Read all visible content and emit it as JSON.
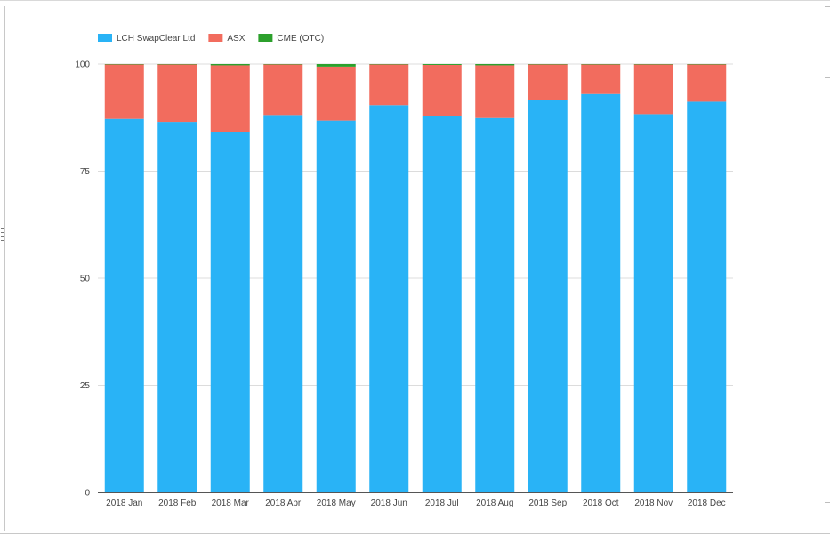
{
  "chart_data": {
    "type": "bar",
    "stacked": true,
    "title": "",
    "xlabel": "",
    "ylabel": "",
    "ylim": [
      0,
      100
    ],
    "yticks": [
      0,
      25,
      50,
      75,
      100
    ],
    "grid": true,
    "legend_position": "top-left",
    "categories": [
      "2018 Jan",
      "2018 Feb",
      "2018 Mar",
      "2018 Apr",
      "2018 May",
      "2018 Jun",
      "2018 Jul",
      "2018 Aug",
      "2018 Sep",
      "2018 Oct",
      "2018 Nov",
      "2018 Dec"
    ],
    "series": [
      {
        "name": "LCH SwapClear Ltd",
        "color": "#29b3f6",
        "values": [
          87.2,
          86.5,
          84.1,
          88.1,
          86.8,
          90.4,
          87.9,
          87.4,
          91.6,
          93.0,
          88.3,
          91.2
        ]
      },
      {
        "name": "ASX",
        "color": "#f26c5e",
        "values": [
          12.7,
          13.4,
          15.6,
          11.8,
          12.6,
          9.5,
          11.9,
          12.3,
          8.3,
          6.9,
          11.6,
          8.7
        ]
      },
      {
        "name": "CME (OTC)",
        "color": "#2ca02c",
        "values": [
          0.1,
          0.1,
          0.3,
          0.1,
          0.6,
          0.1,
          0.2,
          0.3,
          0.1,
          0.1,
          0.1,
          0.1
        ]
      }
    ]
  }
}
